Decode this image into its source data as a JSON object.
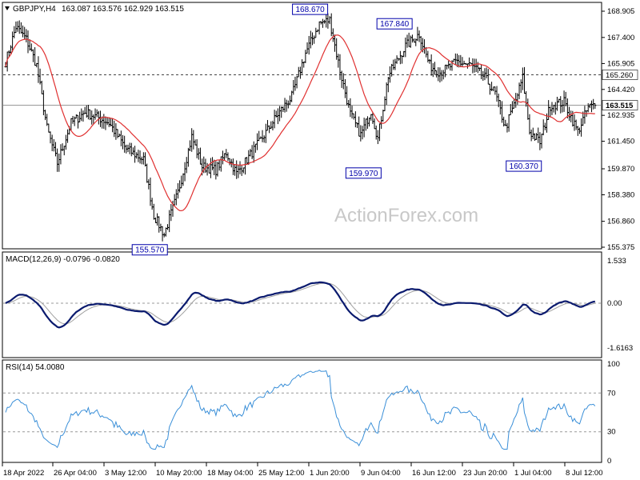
{
  "chart_data": [
    {
      "type": "candlestick",
      "header": {
        "symbol_label": "GBPJPY,H4",
        "ohlc_label": "163.087 163.576 162.929 163.515"
      },
      "watermark": "ActionForex.com",
      "ylim": [
        155.375,
        168.905
      ],
      "y_ticks": [
        "168.905",
        "167.400",
        "165.905",
        "164.420",
        "162.935",
        "161.450",
        "159.870",
        "158.380",
        "156.860",
        "155.375"
      ],
      "x_ticks": [
        "18 Apr 2022",
        "26 Apr 04:00",
        "3 May 12:00",
        "10 May 20:00",
        "18 May 04:00",
        "25 May 12:00",
        "1 Jun 20:00",
        "9 Jun 04:00",
        "16 Jun 12:00",
        "23 Jun 20:00",
        "1 Jul 04:00",
        "8 Jul 12:00"
      ],
      "horizontal_lines": [
        {
          "label": "165.260",
          "value": 165.26,
          "style": "dashed"
        },
        {
          "label": "163.515",
          "value": 163.515,
          "style": "solid"
        }
      ],
      "annotations": [
        {
          "label": "168.670",
          "value": 168.67
        },
        {
          "label": "167.840",
          "value": 167.84
        },
        {
          "label": "159.970",
          "value": 159.97
        },
        {
          "label": "155.570",
          "value": 155.57
        },
        {
          "label": "160.370",
          "value": 160.37
        }
      ],
      "price_anchors": [
        [
          0,
          166.0
        ],
        [
          6,
          168.0
        ],
        [
          12,
          167.3
        ],
        [
          18,
          165.8
        ],
        [
          24,
          162.2
        ],
        [
          30,
          160.2
        ],
        [
          38,
          162.5
        ],
        [
          46,
          163.1
        ],
        [
          54,
          162.8
        ],
        [
          60,
          162.5
        ],
        [
          70,
          161.0
        ],
        [
          80,
          160.4
        ],
        [
          86,
          157.2
        ],
        [
          92,
          156.1
        ],
        [
          100,
          158.5
        ],
        [
          108,
          161.7
        ],
        [
          114,
          160.0
        ],
        [
          122,
          159.8
        ],
        [
          128,
          160.8
        ],
        [
          134,
          159.6
        ],
        [
          140,
          160.4
        ],
        [
          148,
          161.5
        ],
        [
          158,
          163.0
        ],
        [
          166,
          164.0
        ],
        [
          174,
          166.5
        ],
        [
          182,
          168.2
        ],
        [
          188,
          168.4
        ],
        [
          194,
          165.5
        ],
        [
          200,
          163.0
        ],
        [
          206,
          161.8
        ],
        [
          212,
          163.2
        ],
        [
          216,
          161.6
        ],
        [
          222,
          165.2
        ],
        [
          232,
          166.9
        ],
        [
          240,
          167.6
        ],
        [
          246,
          165.8
        ],
        [
          252,
          165.4
        ],
        [
          262,
          166.0
        ],
        [
          270,
          165.8
        ],
        [
          278,
          165.1
        ],
        [
          284,
          164.2
        ],
        [
          290,
          162.2
        ],
        [
          296,
          163.8
        ],
        [
          300,
          165.1
        ],
        [
          304,
          162.0
        ],
        [
          310,
          161.4
        ],
        [
          316,
          163.5
        ],
        [
          324,
          163.7
        ],
        [
          332,
          162.0
        ],
        [
          338,
          163.4
        ],
        [
          342,
          163.5
        ]
      ]
    },
    {
      "type": "line",
      "label": "MACD(12,26,9) -0.0796 -0.0820",
      "ylim": [
        -1.9,
        1.7
      ],
      "y_ticks": [
        "1.533",
        "0.00",
        "-1.6163"
      ],
      "series": [
        {
          "values": "macd"
        },
        {
          "values": "signal"
        }
      ]
    },
    {
      "type": "line",
      "label": "RSI(14) 54.0080",
      "ylim": [
        0,
        100
      ],
      "y_ticks": [
        "100",
        "70",
        "30",
        "0"
      ],
      "levels": [
        70,
        30
      ]
    }
  ],
  "colors": {
    "candle": "#000000",
    "ma": "#e03030",
    "macd": "#0a1a6e",
    "signal": "#a0a0a0",
    "rsi": "#3a8fd8",
    "annotation_text": "#0000aa",
    "grid": "#b0b0b0"
  }
}
